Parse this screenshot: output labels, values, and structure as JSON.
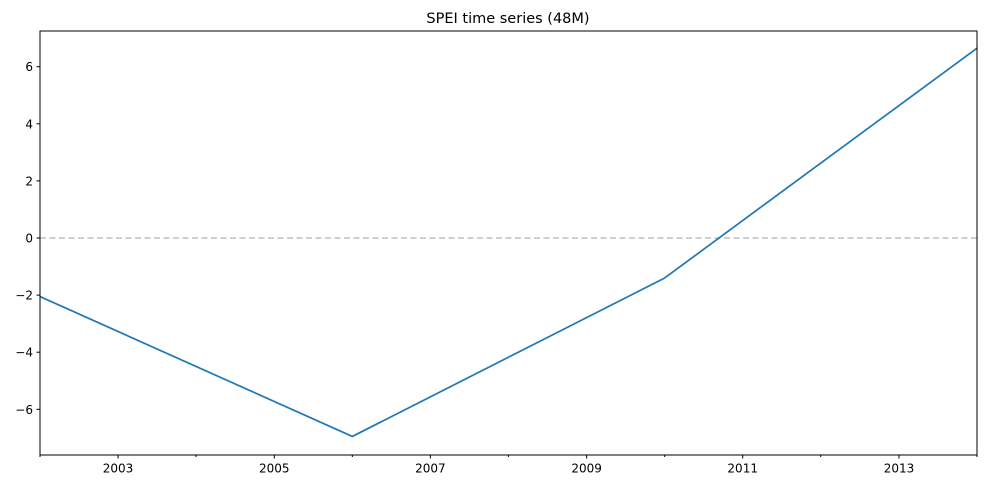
{
  "chart_data": {
    "type": "line",
    "title": "SPEI time series (48M)",
    "xlabel": "",
    "ylabel": "",
    "x_axis_type": "date",
    "xlim": [
      "2002-01-01",
      "2014-01-01"
    ],
    "ylim": [
      -7.6,
      7.25
    ],
    "x_ticks": [
      {
        "date": "2003-01-01",
        "label": "2003"
      },
      {
        "date": "2005-01-01",
        "label": "2005"
      },
      {
        "date": "2007-01-01",
        "label": "2007"
      },
      {
        "date": "2009-01-01",
        "label": "2009"
      },
      {
        "date": "2011-01-01",
        "label": "2011"
      },
      {
        "date": "2013-01-01",
        "label": "2013"
      }
    ],
    "x_minor_ticks": [
      "2002-01-01",
      "2004-01-01",
      "2006-01-01",
      "2008-01-01",
      "2010-01-01",
      "2012-01-01",
      "2014-01-01"
    ],
    "y_ticks": [
      {
        "value": -6,
        "label": "−6"
      },
      {
        "value": -4,
        "label": "−4"
      },
      {
        "value": -2,
        "label": "−2"
      },
      {
        "value": 0,
        "label": "0"
      },
      {
        "value": 2,
        "label": "2"
      },
      {
        "value": 4,
        "label": "4"
      },
      {
        "value": 6,
        "label": "6"
      }
    ],
    "reference_line": {
      "y": 0,
      "style": "dashed",
      "color": "#bfbfbf"
    },
    "series": [
      {
        "color": "#1f77b4",
        "points": [
          {
            "x": "2002-01-01",
            "y": -2.05
          },
          {
            "x": "2006-01-01",
            "y": -6.95
          },
          {
            "x": "2010-01-01",
            "y": -1.4
          },
          {
            "x": "2014-01-01",
            "y": 6.65
          }
        ]
      }
    ],
    "grid": false,
    "legend": "none"
  }
}
